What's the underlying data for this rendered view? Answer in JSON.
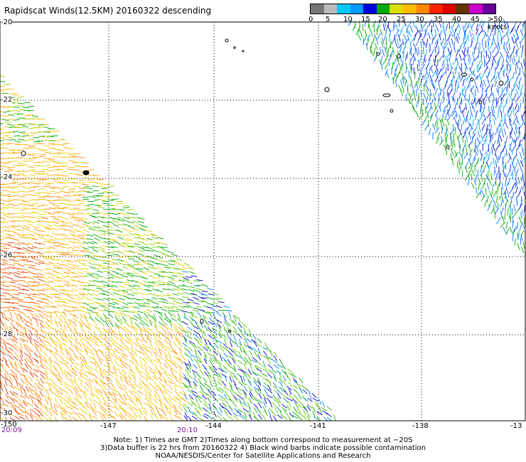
{
  "title": "Rapidscat Winds(12.5KM) 20160322 descending",
  "legend": {
    "labels": [
      "0",
      "5",
      "10",
      "15",
      "20",
      "25",
      "30",
      "35",
      "40",
      "45",
      ">50 knots"
    ],
    "colors": [
      "#777777",
      "#bbbbbb",
      "#00c8ff",
      "#0099ff",
      "#0000dd",
      "#00aa00",
      "#dddd00",
      "#ffbb00",
      "#ff8800",
      "#ff2200",
      "#dd0000",
      "#663300",
      "#cc00cc",
      "#660099"
    ]
  },
  "axes": {
    "lat_labels": [
      "-20",
      "-22",
      "-24",
      "-26",
      "-28",
      "-30"
    ],
    "lon_labels": [
      "-150",
      "-147",
      "-144",
      "-141",
      "-138",
      "-13"
    ]
  },
  "times": [
    "20:09",
    "20:10"
  ],
  "notes": [
    "Note: 1) Times are GMT 2)Times along bottom correspond to measurement at −20S",
    "3)Data buffer is 22 hrs from 20160322 4) Black wind barbs indicate possible contamination",
    "NOAA/NESDIS/Center for Satellite Applications and Research"
  ]
}
